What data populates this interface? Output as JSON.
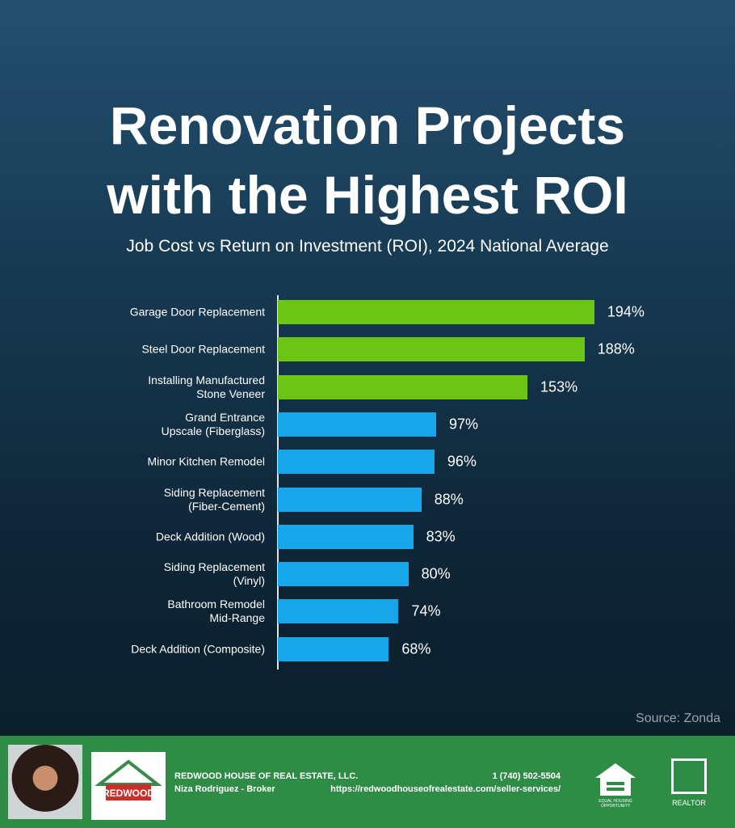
{
  "chart_data": {
    "type": "bar",
    "orientation": "horizontal",
    "title": "Renovation Projects with the Highest ROI",
    "subtitle": "Job Cost vs Return on Investment (ROI), 2024 National Average",
    "categories": [
      "Garage Door Replacement",
      "Steel Door Replacement",
      "Installing Manufactured\nStone Veneer",
      "Grand Entrance\nUpscale (Fiberglass)",
      "Minor Kitchen Remodel",
      "Siding Replacement\n(Fiber-Cement)",
      "Deck Addition (Wood)",
      "Siding Replacement\n(Vinyl)",
      "Bathroom Remodel\nMid-Range",
      "Deck Addition (Composite)"
    ],
    "values": [
      194,
      188,
      153,
      97,
      96,
      88,
      83,
      80,
      74,
      68
    ],
    "value_labels": [
      "194%",
      "188%",
      "153%",
      "97%",
      "96%",
      "88%",
      "83%",
      "80%",
      "74%",
      "68%"
    ],
    "colors": [
      "#6cc514",
      "#6cc514",
      "#6cc514",
      "#17a6ea",
      "#17a6ea",
      "#17a6ea",
      "#17a6ea",
      "#17a6ea",
      "#17a6ea",
      "#17a6ea"
    ],
    "source": "Source: Zonda"
  },
  "footer": {
    "company": "REDWOOD HOUSE OF REAL ESTATE, LLC.",
    "broker": "Niza Rodriguez - Broker",
    "phone": "1 (740) 502-5504",
    "url": "https://redwoodhouseofrealestate.com/seller-services/",
    "logo_text": "REDWOOD",
    "equal_housing": "EQUAL HOUSING OPPORTUNITY",
    "realtor": "REALTOR"
  }
}
